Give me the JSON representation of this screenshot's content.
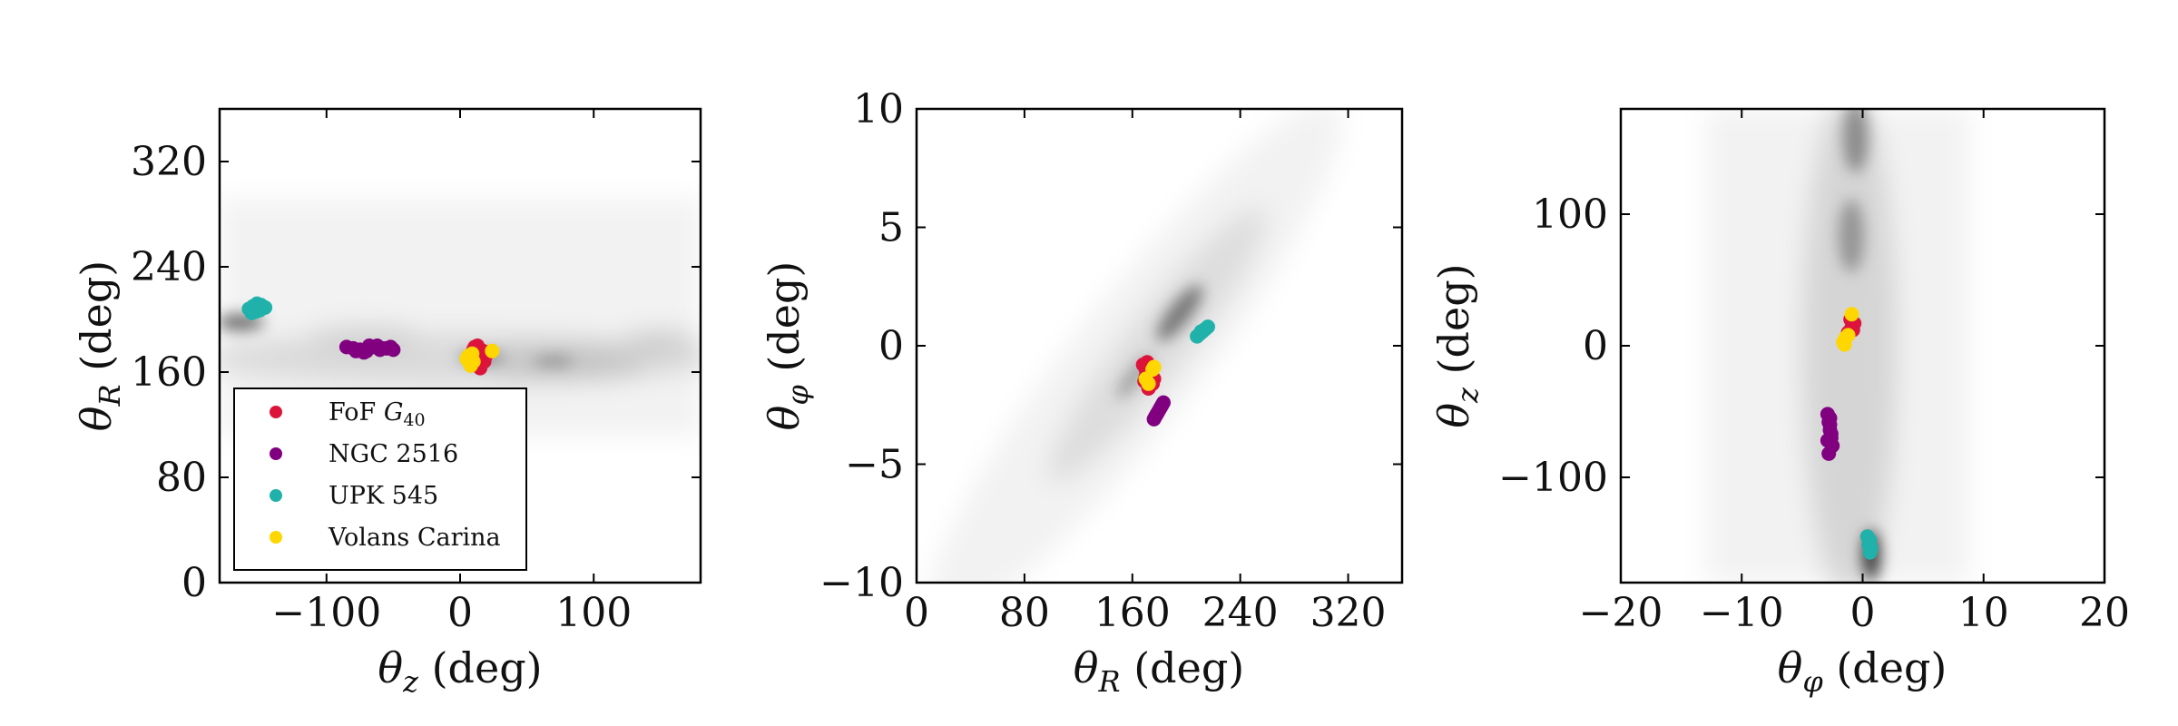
{
  "chart_data": [
    {
      "type": "scatter",
      "xlabel": "θz (deg)",
      "ylabel": "θR (deg)",
      "xlim": [
        -180,
        180
      ],
      "ylim": [
        0,
        360
      ],
      "x_ticks": [
        -100,
        0,
        100
      ],
      "x_tick_labels": [
        "−100",
        "0",
        "100"
      ],
      "y_ticks": [
        0,
        80,
        160,
        240,
        320
      ],
      "y_tick_labels": [
        "0",
        "80",
        "160",
        "240",
        "320"
      ],
      "grid": false,
      "background": "grey density of field stars",
      "legend": {
        "position": "lower-left",
        "entries": [
          "FoF G40",
          "NGC 2516",
          "UPK 545",
          "Volans Carina"
        ]
      },
      "series": [
        {
          "name": "FoF G40",
          "color": "#dc143c",
          "x": [
            8,
            10,
            12,
            14,
            16,
            18,
            20,
            11,
            15,
            19,
            13,
            17
          ],
          "y": [
            172,
            177,
            166,
            174,
            170,
            168,
            175,
            179,
            163,
            172,
            180,
            176
          ]
        },
        {
          "name": "NGC 2516",
          "color": "#800080",
          "x": [
            -85,
            -80,
            -75,
            -70,
            -65,
            -60,
            -55,
            -50,
            -78,
            -68,
            -58,
            -72,
            -62,
            -52
          ],
          "y": [
            179,
            178,
            177,
            176,
            179,
            177,
            178,
            177,
            176,
            180,
            178,
            175,
            180,
            179
          ]
        },
        {
          "name": "UPK 545",
          "color": "#20b2aa",
          "x": [
            -158,
            -155,
            -152,
            -149,
            -146,
            -153,
            -150,
            -156
          ],
          "y": [
            208,
            210,
            212,
            211,
            209,
            206,
            207,
            205
          ]
        },
        {
          "name": "Volans Carina",
          "color": "#ffd700",
          "x": [
            5,
            7,
            9,
            24,
            6,
            8,
            10
          ],
          "y": [
            170,
            167,
            174,
            176,
            172,
            165,
            168
          ]
        }
      ]
    },
    {
      "type": "scatter",
      "xlabel": "θR (deg)",
      "ylabel": "θφ (deg)",
      "xlim": [
        0,
        360
      ],
      "ylim": [
        -10,
        10
      ],
      "x_ticks": [
        0,
        80,
        160,
        240,
        320
      ],
      "x_tick_labels": [
        "0",
        "80",
        "160",
        "240",
        "320"
      ],
      "y_ticks": [
        -10,
        -5,
        0,
        5,
        10
      ],
      "y_tick_labels": [
        "−10",
        "−5",
        "0",
        "5",
        "10"
      ],
      "grid": false,
      "background": "grey density of field stars",
      "series": [
        {
          "name": "FoF G40",
          "color": "#dc143c",
          "x": [
            168,
            170,
            172,
            174,
            176,
            169,
            171,
            173,
            175,
            170,
            172
          ],
          "y": [
            -0.8,
            -1.0,
            -1.2,
            -0.9,
            -1.4,
            -1.5,
            -0.7,
            -1.1,
            -1.6,
            -1.3,
            -1.8
          ]
        },
        {
          "name": "NGC 2516",
          "color": "#800080",
          "x": [
            176,
            177,
            178,
            179,
            180,
            181,
            182,
            183
          ],
          "y": [
            -3.1,
            -3.0,
            -2.9,
            -2.8,
            -2.7,
            -2.6,
            -2.5,
            -2.4
          ]
        },
        {
          "name": "UPK 545",
          "color": "#20b2aa",
          "x": [
            208,
            210,
            212,
            214,
            216,
            211
          ],
          "y": [
            0.4,
            0.5,
            0.6,
            0.7,
            0.8,
            0.6
          ]
        },
        {
          "name": "Volans Carina",
          "color": "#ffd700",
          "x": [
            170,
            172,
            175,
            176
          ],
          "y": [
            -1.4,
            -1.6,
            -1.0,
            -0.9
          ]
        }
      ]
    },
    {
      "type": "scatter",
      "xlabel": "θφ (deg)",
      "ylabel": "θz (deg)",
      "xlim": [
        -20,
        20
      ],
      "ylim": [
        -180,
        180
      ],
      "x_ticks": [
        -20,
        -10,
        0,
        10,
        20
      ],
      "x_tick_labels": [
        "−20",
        "−10",
        "0",
        "10",
        "20"
      ],
      "y_ticks": [
        -100,
        0,
        100
      ],
      "y_tick_labels": [
        "−100",
        "0",
        "100"
      ],
      "grid": false,
      "background": "grey density of field stars",
      "series": [
        {
          "name": "FoF G40",
          "color": "#dc143c",
          "x": [
            -1.2,
            -0.9,
            -0.7,
            -1.0,
            -0.8
          ],
          "y": [
            10,
            14,
            17,
            20,
            12
          ]
        },
        {
          "name": "NGC 2516",
          "color": "#800080",
          "x": [
            -2.9,
            -2.8,
            -2.7,
            -2.6,
            -2.5,
            -2.8,
            -2.7,
            -2.6,
            -2.9,
            -2.7
          ],
          "y": [
            -52,
            -58,
            -64,
            -70,
            -76,
            -82,
            -60,
            -67,
            -72,
            -55
          ]
        },
        {
          "name": "UPK 545",
          "color": "#20b2aa",
          "x": [
            0.4,
            0.6,
            0.5,
            0.7,
            0.6
          ],
          "y": [
            -145,
            -148,
            -151,
            -154,
            -157
          ]
        },
        {
          "name": "Volans Carina",
          "color": "#ffd700",
          "x": [
            -1.6,
            -1.4,
            -1.2,
            -0.9,
            -1.5
          ],
          "y": [
            3,
            6,
            8,
            24,
            1
          ]
        }
      ]
    }
  ]
}
